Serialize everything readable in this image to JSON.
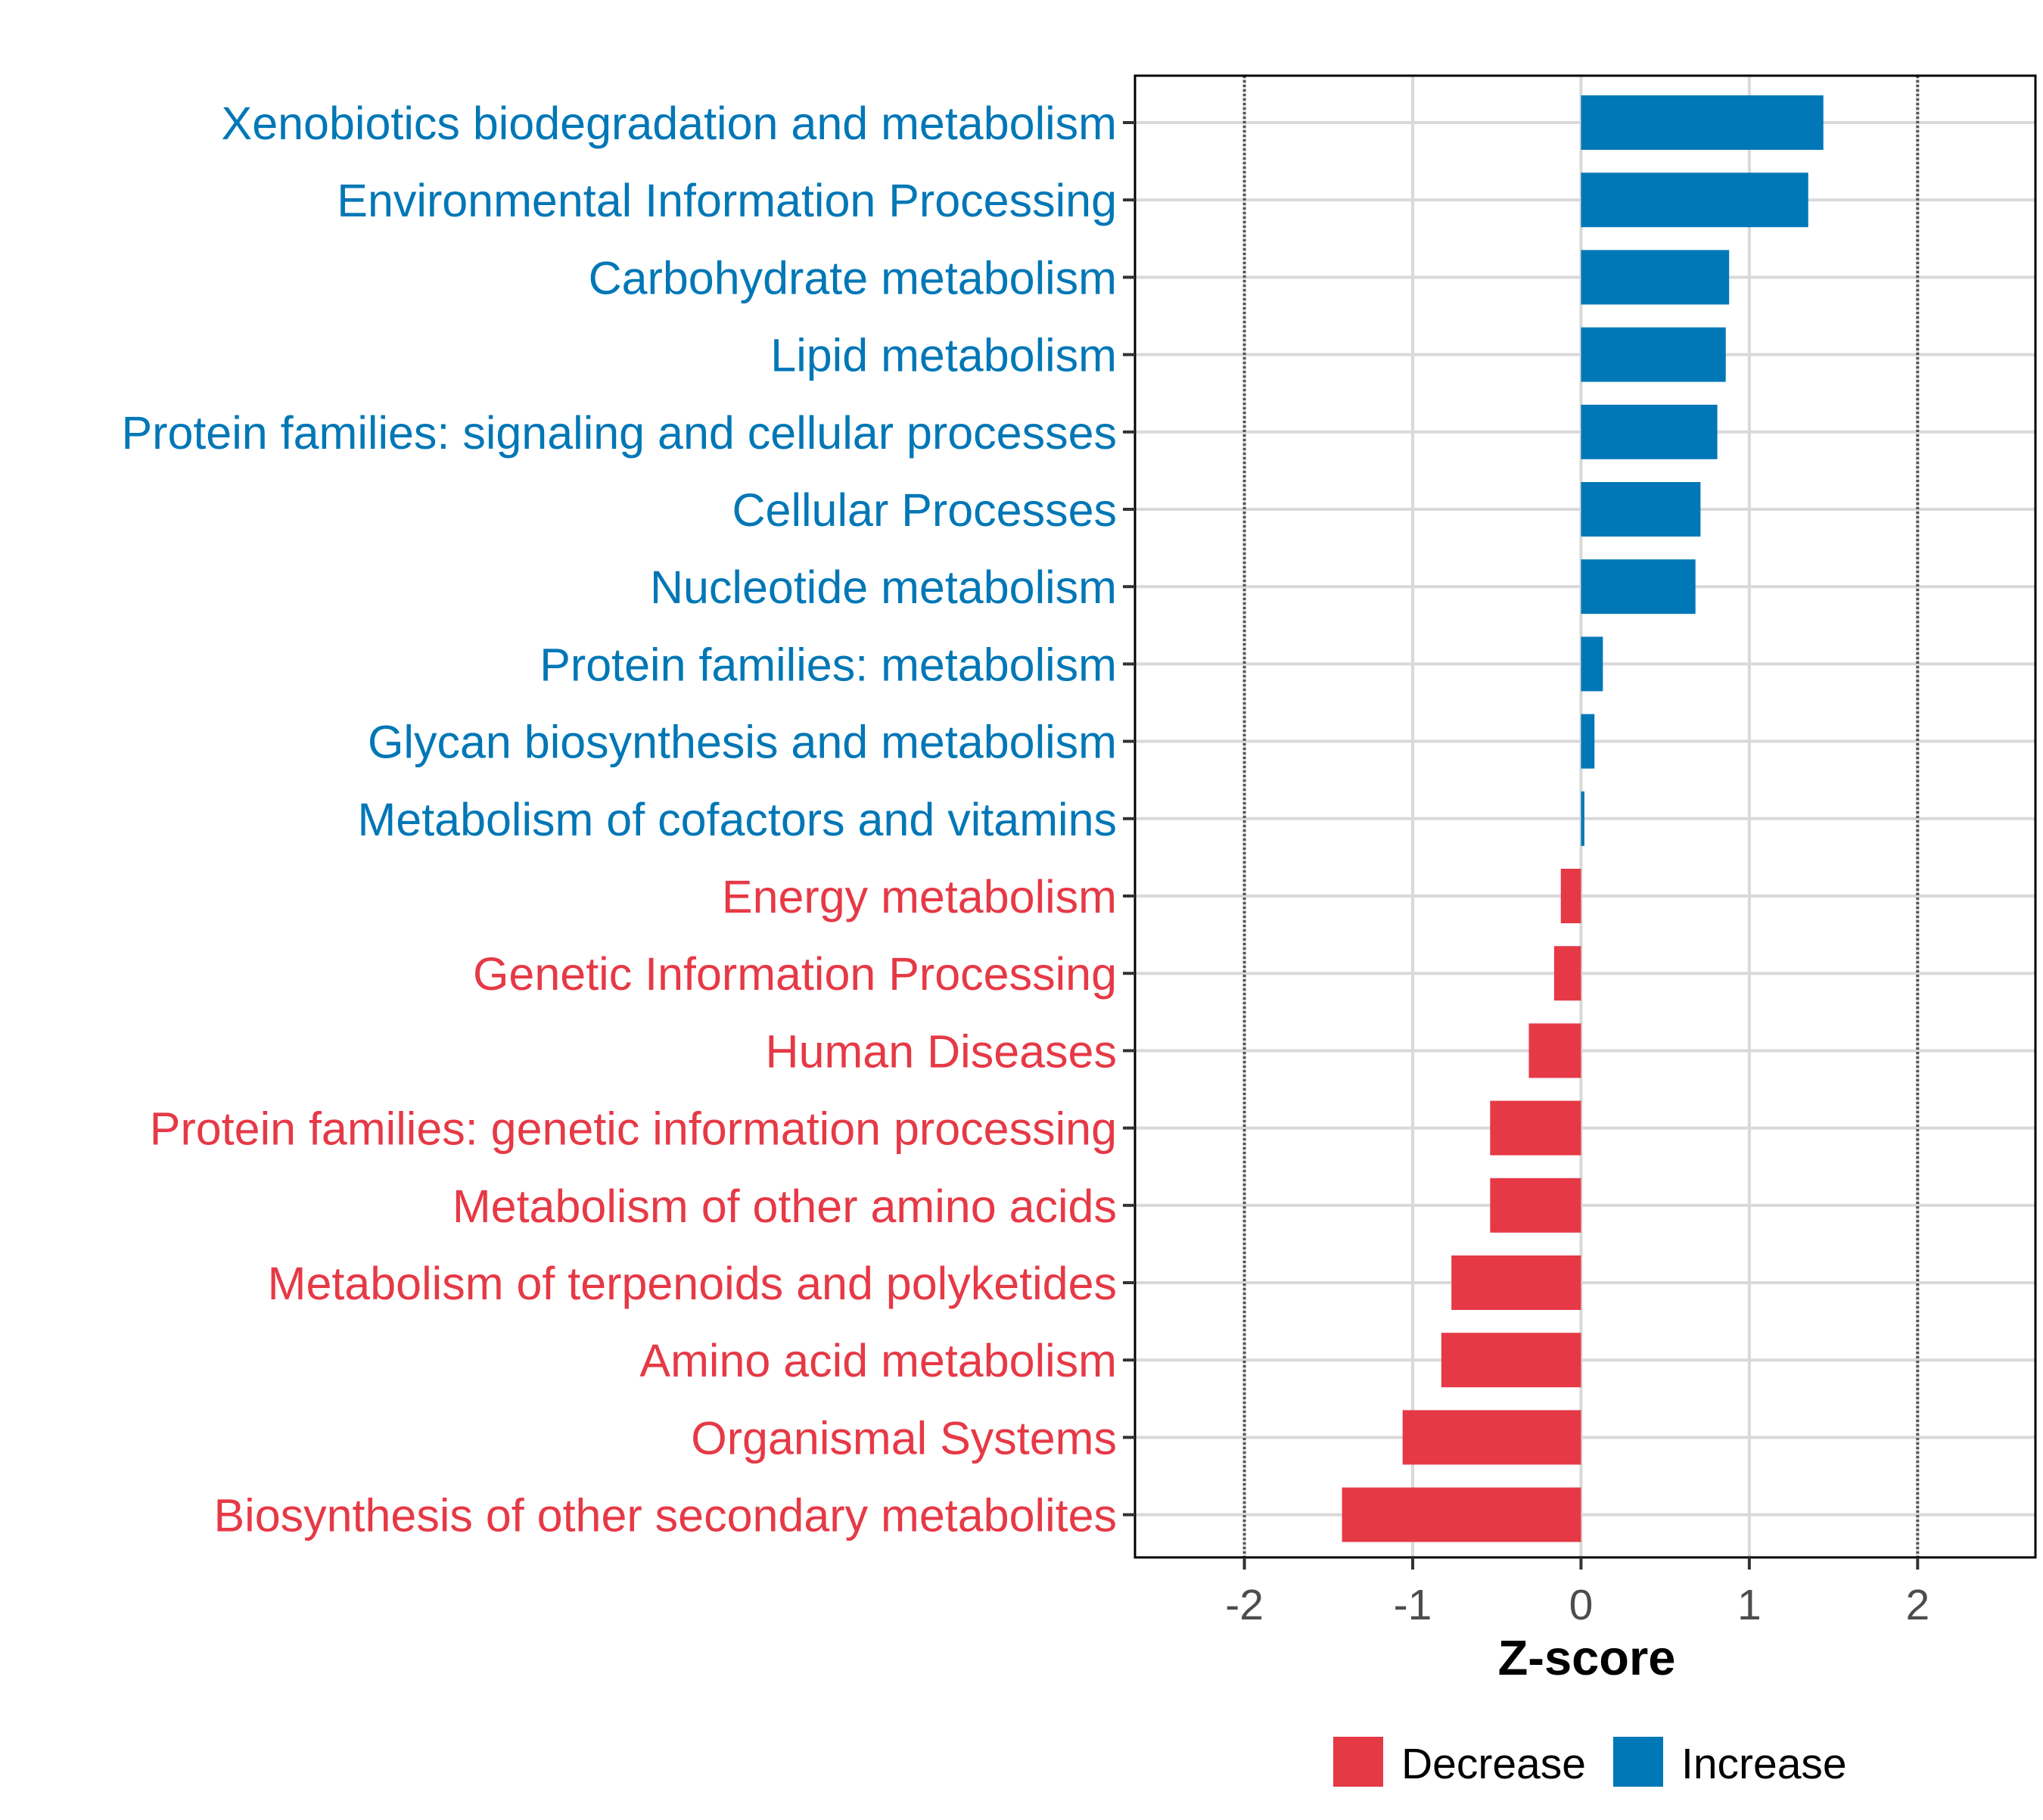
{
  "chart_data": {
    "type": "bar",
    "orientation": "horizontal",
    "xlabel": "Z-score",
    "xlim": [
      -2.65,
      2.7
    ],
    "xticks": [
      -2,
      -1,
      0,
      1,
      2
    ],
    "xtick_labels": [
      "-2",
      "-1",
      "0",
      "1",
      "2"
    ],
    "reference_lines": [
      -2,
      2
    ],
    "grid": true,
    "legend_position": "bottom",
    "legend": [
      {
        "label": "Decrease",
        "color": "#E63946"
      },
      {
        "label": "Increase",
        "color": "#0077B6"
      }
    ],
    "categories": [
      "Xenobiotics biodegradation and metabolism",
      "Environmental Information Processing",
      "Carbohydrate metabolism",
      "Lipid metabolism",
      "Protein families: signaling and cellular processes",
      "Cellular Processes",
      "Nucleotide metabolism",
      "Protein families: metabolism",
      "Glycan biosynthesis and metabolism",
      "Metabolism of cofactors and vitamins",
      "Energy metabolism",
      "Genetic Information Processing",
      "Human Diseases",
      "Protein families: genetic information processing",
      "Metabolism of other amino acids",
      "Metabolism of terpenoids and polyketides",
      "Amino acid metabolism",
      "Organismal Systems",
      "Biosynthesis of other secondary metabolites"
    ],
    "values": [
      1.44,
      1.35,
      0.88,
      0.86,
      0.81,
      0.71,
      0.68,
      0.13,
      0.08,
      0.02,
      -0.12,
      -0.16,
      -0.31,
      -0.54,
      -0.54,
      -0.77,
      -0.83,
      -1.06,
      -1.42
    ],
    "groups": [
      "Increase",
      "Increase",
      "Increase",
      "Increase",
      "Increase",
      "Increase",
      "Increase",
      "Increase",
      "Increase",
      "Increase",
      "Decrease",
      "Decrease",
      "Decrease",
      "Decrease",
      "Decrease",
      "Decrease",
      "Decrease",
      "Decrease",
      "Decrease"
    ]
  }
}
